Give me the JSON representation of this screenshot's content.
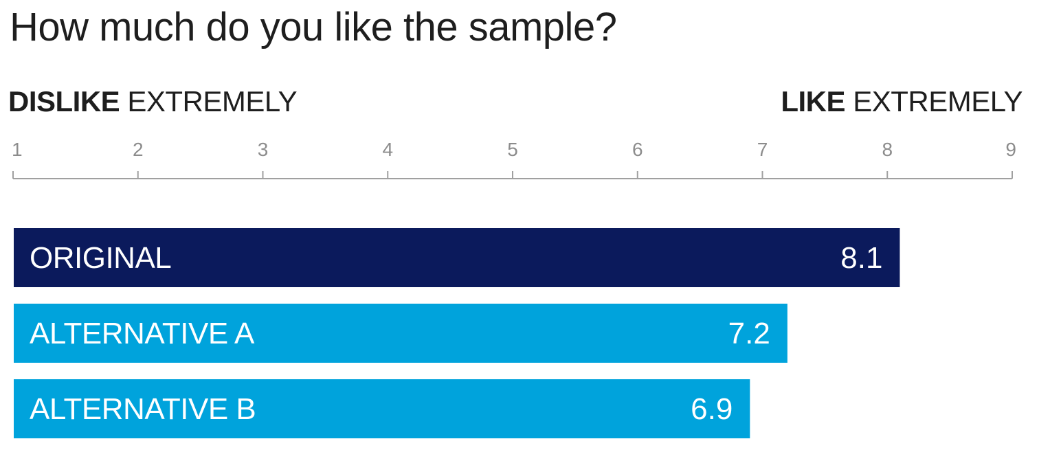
{
  "title": "How much do you like the sample?",
  "scale": {
    "left_anchor": {
      "bold": "DISLIKE",
      "rest": "EXTREMELY"
    },
    "right_anchor": {
      "bold": "LIKE",
      "rest": "EXTREMELY"
    }
  },
  "colors": {
    "primary": "#0b1a5c",
    "secondary": "#00a3dc",
    "axis": "#a0a0a0",
    "tick_text": "#8c8c8c",
    "text": "#1e1e1e"
  },
  "chart_data": {
    "type": "bar",
    "orientation": "horizontal",
    "title": "How much do you like the sample?",
    "xlim": [
      1,
      9
    ],
    "ticks": [
      "1",
      "2",
      "3",
      "4",
      "5",
      "6",
      "7",
      "8",
      "9"
    ],
    "tick_values": [
      1,
      2,
      3,
      4,
      5,
      6,
      7,
      8,
      9
    ],
    "categories": [
      "ORIGINAL",
      "ALTERNATIVE A",
      "ALTERNATIVE B"
    ],
    "values": [
      8.1,
      7.2,
      6.9
    ],
    "value_labels": [
      "8.1",
      "7.2",
      "6.9"
    ],
    "bar_colors": [
      "#0b1a5c",
      "#00a3dc",
      "#00a3dc"
    ],
    "axis_position": "top",
    "grid": false,
    "legend": "none"
  }
}
